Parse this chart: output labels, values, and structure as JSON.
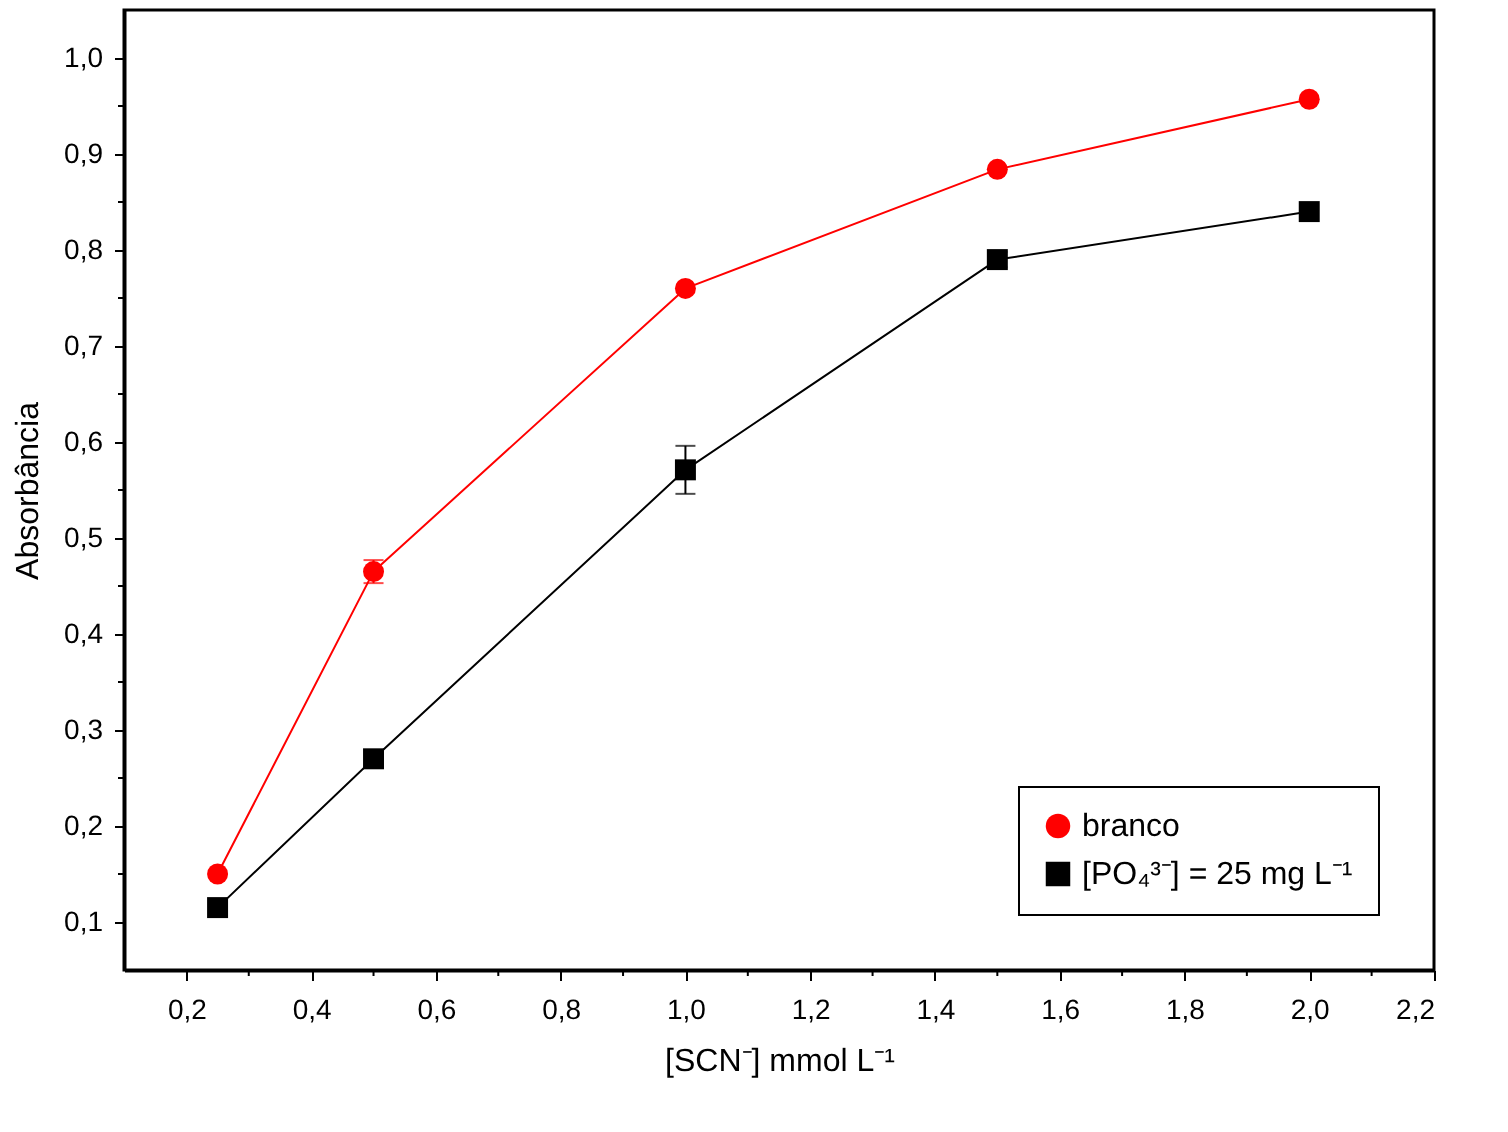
{
  "chart_data": {
    "type": "line",
    "xlabel": "[SCN⁻] mmol L⁻¹",
    "ylabel": "Absorbância",
    "x": [
      0.25,
      0.5,
      1.0,
      1.5,
      2.0
    ],
    "series": [
      {
        "name": "branco",
        "color": "#ff0000",
        "marker": "circle",
        "values": [
          0.15,
          0.465,
          0.76,
          0.884,
          0.957
        ],
        "errors": [
          null,
          0.012,
          null,
          null,
          null
        ]
      },
      {
        "name": "[PO₄³⁻] = 25 mg L⁻¹",
        "color": "#000000",
        "marker": "square",
        "values": [
          0.115,
          0.27,
          0.571,
          0.79,
          0.84
        ],
        "errors": [
          null,
          null,
          0.025,
          0.008,
          null
        ]
      }
    ],
    "xlim": [
      0.1,
      2.2
    ],
    "xticks": [
      {
        "value": 0.2,
        "label": "0,2"
      },
      {
        "value": 0.3,
        "label": null
      },
      {
        "value": 0.4,
        "label": "0,4"
      },
      {
        "value": 0.5,
        "label": null
      },
      {
        "value": 0.6,
        "label": "0,6"
      },
      {
        "value": 0.7,
        "label": null
      },
      {
        "value": 0.8,
        "label": "0,8"
      },
      {
        "value": 0.9,
        "label": null
      },
      {
        "value": 1.0,
        "label": "1,0"
      },
      {
        "value": 1.1,
        "label": null
      },
      {
        "value": 1.2,
        "label": "1,2"
      },
      {
        "value": 1.3,
        "label": null
      },
      {
        "value": 1.4,
        "label": "1,4"
      },
      {
        "value": 1.5,
        "label": null
      },
      {
        "value": 1.6,
        "label": "1,6"
      },
      {
        "value": 1.7,
        "label": null
      },
      {
        "value": 1.8,
        "label": "1,8"
      },
      {
        "value": 1.9,
        "label": null
      },
      {
        "value": 2.0,
        "label": "2,0"
      },
      {
        "value": 2.1,
        "label": null
      },
      {
        "value": 2.2,
        "label": "2,2"
      }
    ],
    "ylim": [
      0.05,
      1.05
    ],
    "yticks": [
      {
        "value": 0.1,
        "label": "0,1"
      },
      {
        "value": 0.15,
        "label": null
      },
      {
        "value": 0.2,
        "label": "0,2"
      },
      {
        "value": 0.25,
        "label": null
      },
      {
        "value": 0.3,
        "label": "0,3"
      },
      {
        "value": 0.35,
        "label": null
      },
      {
        "value": 0.4,
        "label": "0,4"
      },
      {
        "value": 0.45,
        "label": null
      },
      {
        "value": 0.5,
        "label": "0,5"
      },
      {
        "value": 0.55,
        "label": null
      },
      {
        "value": 0.6,
        "label": "0,6"
      },
      {
        "value": 0.65,
        "label": null
      },
      {
        "value": 0.7,
        "label": "0,7"
      },
      {
        "value": 0.75,
        "label": null
      },
      {
        "value": 0.8,
        "label": "0,8"
      },
      {
        "value": 0.85,
        "label": null
      },
      {
        "value": 0.9,
        "label": "0,9"
      },
      {
        "value": 0.95,
        "label": null
      },
      {
        "value": 1.0,
        "label": "1,0"
      }
    ],
    "grid": false,
    "legend": "bottom right",
    "line_style": "solid"
  }
}
